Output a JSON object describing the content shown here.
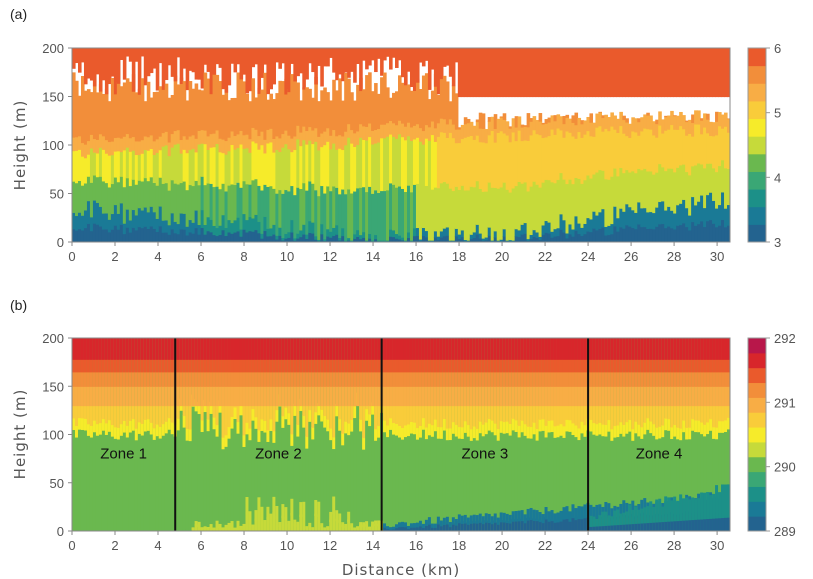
{
  "chart_data": [
    {
      "type": "heatmap",
      "panel_label": "(a)",
      "xlabel": "",
      "ylabel": "Height (m)",
      "xlim": [
        0,
        30.6
      ],
      "ylim": [
        0,
        200
      ],
      "x_ticks": [
        "0",
        "2",
        "4",
        "6",
        "8",
        "10",
        "12",
        "14",
        "16",
        "18",
        "20",
        "22",
        "24",
        "26",
        "28",
        "30"
      ],
      "y_ticks": [
        "0",
        "50",
        "100",
        "150",
        "200"
      ],
      "colorbar": {
        "range": [
          3,
          6
        ],
        "tick_labels": [
          "3",
          "4",
          "5",
          "6"
        ],
        "colors": [
          "#23638f",
          "#1a7a96",
          "#1c9088",
          "#3aa775",
          "#6ab84f",
          "#c6da3a",
          "#f6eb2a",
          "#f9cc3a",
          "#f8ad45",
          "#f28e3a",
          "#ea5a2c"
        ]
      },
      "description_values": {
        "boundary_layer_top_m": [
          [
            0,
            100
          ],
          [
            8,
            105
          ],
          [
            14,
            112
          ],
          [
            20,
            118
          ],
          [
            30.6,
            125
          ]
        ],
        "surface_layer_top_m": [
          [
            0,
            35
          ],
          [
            10,
            15
          ],
          [
            14,
            3
          ],
          [
            20,
            10
          ],
          [
            30.6,
            45
          ]
        ]
      }
    },
    {
      "type": "heatmap",
      "panel_label": "(b)",
      "xlabel": "Distance (km)",
      "ylabel": "Height (m)",
      "xlim": [
        0,
        30.6
      ],
      "ylim": [
        0,
        200
      ],
      "x_ticks": [
        "0",
        "2",
        "4",
        "6",
        "8",
        "10",
        "12",
        "14",
        "16",
        "18",
        "20",
        "22",
        "24",
        "26",
        "28",
        "30"
      ],
      "y_ticks": [
        "0",
        "50",
        "100",
        "150",
        "200"
      ],
      "colorbar": {
        "range": [
          289,
          292
        ],
        "tick_labels": [
          "289",
          "290",
          "291",
          "292"
        ],
        "colors": [
          "#23638f",
          "#1a7a96",
          "#1c9088",
          "#3aa775",
          "#6ab84f",
          "#c6da3a",
          "#f6eb2a",
          "#f9cc3a",
          "#f8ad45",
          "#f28e3a",
          "#ea5a2c",
          "#d8262b",
          "#b8174a"
        ]
      },
      "zone_boundaries_km": [
        4.8,
        14.4,
        24.0
      ],
      "zones": [
        {
          "label": "Zone 1",
          "x_center": 2.4
        },
        {
          "label": "Zone 2",
          "x_center": 9.6
        },
        {
          "label": "Zone 3",
          "x_center": 19.2
        },
        {
          "label": "Zone 4",
          "x_center": 27.3
        }
      ]
    }
  ]
}
